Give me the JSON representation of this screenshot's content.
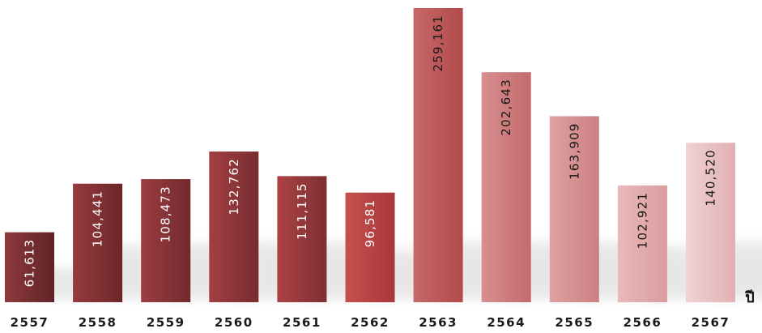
{
  "chart_data": {
    "type": "bar",
    "title": "",
    "xlabel": "ปี",
    "ylabel": "",
    "ylim": [
      0,
      259161
    ],
    "grid": false,
    "legend": "none",
    "categories": [
      "2557",
      "2558",
      "2559",
      "2560",
      "2561",
      "2562",
      "2563",
      "2564",
      "2565",
      "2566",
      "2567"
    ],
    "values": [
      61613,
      104441,
      108473,
      132762,
      111115,
      96581,
      259161,
      202643,
      163909,
      102921,
      140520
    ],
    "value_labels": [
      "61,613",
      "104,441",
      "108,473",
      "132,762",
      "111,115",
      "96,581",
      "259,161",
      "202,643",
      "163,909",
      "102,921",
      "140,520"
    ],
    "bar_colors": [
      [
        "#8e3a3c",
        "#5f2326"
      ],
      [
        "#973b3e",
        "#6b2629"
      ],
      [
        "#9c3d40",
        "#712a2d"
      ],
      [
        "#a33f42",
        "#782c2f"
      ],
      [
        "#ab4245",
        "#7f2f32"
      ],
      [
        "#c6504f",
        "#a8373a"
      ],
      [
        "#c76868",
        "#b24a4c"
      ],
      [
        "#d78f8f",
        "#c46a6c"
      ],
      [
        "#dea1a1",
        "#cc7f81"
      ],
      [
        "#eab9b9",
        "#d99c9e"
      ],
      [
        "#f1d2d2",
        "#e0b0b2"
      ]
    ],
    "value_label_colors": [
      "#ffffff",
      "#ffffff",
      "#ffffff",
      "#ffffff",
      "#ffffff",
      "#ffffff",
      "#1a1a1a",
      "#1a1a1a",
      "#1a1a1a",
      "#1a1a1a",
      "#1a1a1a"
    ]
  }
}
